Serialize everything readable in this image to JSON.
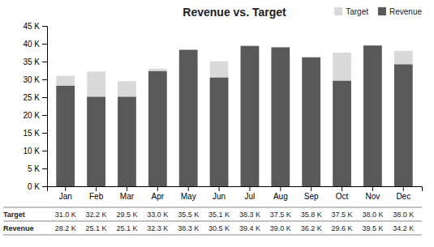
{
  "chart_data": {
    "type": "bar",
    "title": "Revenue vs. Target",
    "categories": [
      "Jan",
      "Feb",
      "Mar",
      "Apr",
      "May",
      "Jun",
      "Jul",
      "Aug",
      "Sep",
      "Oct",
      "Nov",
      "Dec"
    ],
    "series": [
      {
        "name": "Target",
        "color": "#d9d9d9",
        "values": [
          31000,
          32200,
          29500,
          33000,
          35500,
          35100,
          38300,
          37500,
          35800,
          37500,
          38000,
          38000
        ],
        "value_labels": [
          "31.0 K",
          "32.2 K",
          "29.5 K",
          "33.0 K",
          "35.5 K",
          "35.1 K",
          "38.3 K",
          "37.5 K",
          "35.8 K",
          "37.5 K",
          "38.0 K",
          "38.0 K"
        ]
      },
      {
        "name": "Revenue",
        "color": "#595959",
        "values": [
          28200,
          25100,
          25100,
          32300,
          38300,
          30500,
          39400,
          39000,
          36200,
          29600,
          39500,
          34200
        ],
        "value_labels": [
          "28.2 K",
          "25.1 K",
          "25.1 K",
          "32.3 K",
          "38.3 K",
          "30.5 K",
          "39.4 K",
          "39.0 K",
          "36.2 K",
          "29.6 K",
          "39.5 K",
          "34.2 K"
        ]
      }
    ],
    "ylim": [
      0,
      45000
    ],
    "yticks": [
      {
        "value": 0,
        "label": "0 K"
      },
      {
        "value": 5000,
        "label": "5 K"
      },
      {
        "value": 10000,
        "label": "10 K"
      },
      {
        "value": 15000,
        "label": "15 K"
      },
      {
        "value": 20000,
        "label": "20 K"
      },
      {
        "value": 25000,
        "label": "25 K"
      },
      {
        "value": 30000,
        "label": "30 K"
      },
      {
        "value": 35000,
        "label": "35 K"
      },
      {
        "value": 40000,
        "label": "40 K"
      },
      {
        "value": 45000,
        "label": "45 K"
      }
    ],
    "grid": false,
    "legend": "upper right"
  }
}
